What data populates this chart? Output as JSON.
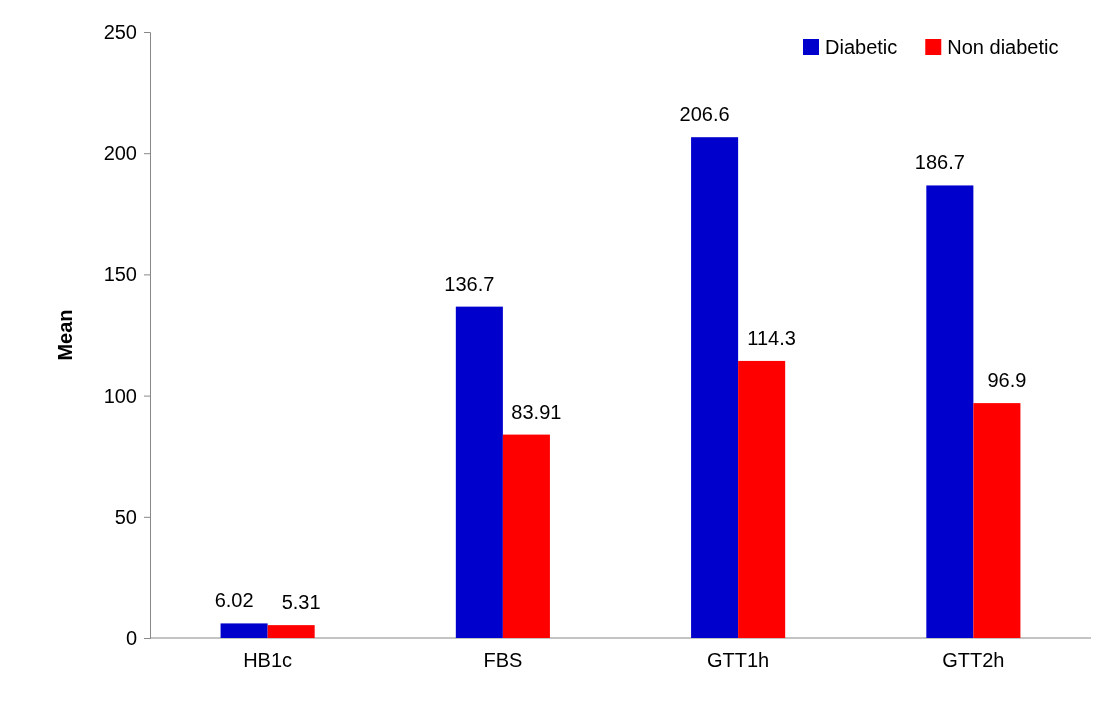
{
  "chart_data": {
    "type": "bar",
    "ylabel": "Mean",
    "categories": [
      "HB1c",
      "FBS",
      "GTT1h",
      "GTT2h"
    ],
    "series": [
      {
        "name": "Diabetic",
        "color": "#0000cc",
        "values": [
          6.02,
          136.7,
          206.6,
          186.7
        ]
      },
      {
        "name": "Non diabetic",
        "color": "#ff0000",
        "values": [
          5.31,
          83.91,
          114.3,
          96.9
        ]
      }
    ],
    "ylim": [
      0,
      250
    ],
    "yticks": [
      0,
      50,
      100,
      150,
      200,
      250
    ],
    "data_labels": true,
    "legend": "top right"
  }
}
